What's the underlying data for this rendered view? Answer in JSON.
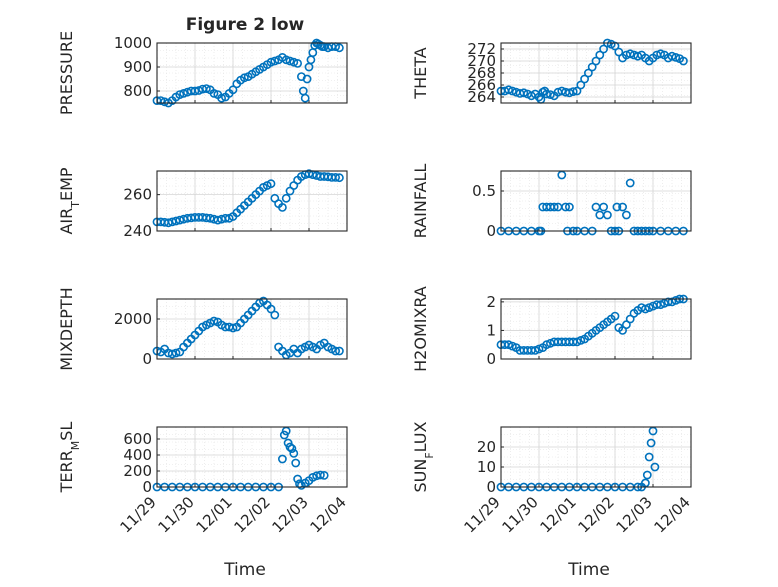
{
  "figure": {
    "title": "Figure 2 low",
    "marker_color": "#0072BD",
    "grid": "on",
    "x_tick_labels": [
      "11/29",
      "11/30",
      "12/01",
      "12/02",
      "12/03",
      "12/04"
    ],
    "x_label": "Time"
  },
  "chart_data": [
    {
      "type": "scatter",
      "ylabel": "PRESSURE",
      "ylim": [
        750,
        1000
      ],
      "yticks": [
        "800",
        "900",
        "1000"
      ],
      "ytick_values": [
        800,
        900,
        1000
      ],
      "xlim": [
        0,
        5
      ],
      "x": [
        0.0,
        0.1,
        0.2,
        0.3,
        0.4,
        0.5,
        0.6,
        0.7,
        0.8,
        0.9,
        1.0,
        1.1,
        1.2,
        1.3,
        1.4,
        1.5,
        1.6,
        1.7,
        1.8,
        1.9,
        2.0,
        2.1,
        2.2,
        2.3,
        2.4,
        2.5,
        2.6,
        2.7,
        2.8,
        2.9,
        3.0,
        3.1,
        3.2,
        3.3,
        3.4,
        3.5,
        3.6,
        3.7,
        3.8,
        3.85,
        3.9,
        3.95,
        4.0,
        4.05,
        4.1,
        4.15,
        4.2,
        4.25,
        4.3,
        4.35,
        4.4,
        4.5,
        4.6,
        4.7,
        4.8
      ],
      "y": [
        760,
        760,
        755,
        750,
        760,
        775,
        785,
        790,
        795,
        800,
        800,
        802,
        808,
        810,
        805,
        790,
        785,
        770,
        775,
        790,
        805,
        830,
        845,
        855,
        860,
        870,
        880,
        890,
        900,
        910,
        920,
        925,
        930,
        940,
        930,
        925,
        920,
        915,
        860,
        800,
        770,
        850,
        900,
        930,
        960,
        990,
        1000,
        995,
        990,
        985,
        985,
        980,
        985,
        985,
        980
      ]
    },
    {
      "type": "scatter",
      "ylabel": "THETA",
      "ylim": [
        263,
        273
      ],
      "yticks": [
        "264",
        "266",
        "268",
        "270",
        "272"
      ],
      "ytick_values": [
        264,
        266,
        268,
        270,
        272
      ],
      "xlim": [
        0,
        5
      ],
      "x": [
        0.0,
        0.1,
        0.2,
        0.3,
        0.4,
        0.5,
        0.6,
        0.7,
        0.8,
        0.9,
        1.0,
        1.05,
        1.1,
        1.15,
        1.2,
        1.3,
        1.4,
        1.5,
        1.6,
        1.7,
        1.8,
        1.9,
        2.0,
        2.1,
        2.2,
        2.3,
        2.4,
        2.5,
        2.6,
        2.7,
        2.8,
        2.9,
        3.0,
        3.1,
        3.2,
        3.3,
        3.4,
        3.5,
        3.6,
        3.7,
        3.8,
        3.9,
        4.0,
        4.1,
        4.2,
        4.3,
        4.4,
        4.5,
        4.6,
        4.7,
        4.8
      ],
      "y": [
        265,
        265,
        265.2,
        265,
        264.8,
        264.6,
        264.7,
        264.5,
        264.2,
        264.5,
        264,
        263.6,
        264.8,
        265,
        264.5,
        264.4,
        264.2,
        264.8,
        265,
        264.8,
        264.7,
        264.9,
        265,
        266,
        267,
        268,
        269,
        270,
        271,
        272,
        273,
        272.8,
        272.5,
        271.5,
        270.5,
        271,
        271.2,
        271,
        270.8,
        271,
        270.5,
        270,
        270.5,
        271,
        271.2,
        271,
        270.5,
        270.8,
        270.6,
        270.4,
        270
      ]
    },
    {
      "type": "scatter",
      "ylabel": "AIR_TEMP",
      "ylim": [
        240,
        273
      ],
      "yticks": [
        "240",
        "260"
      ],
      "ytick_values": [
        240,
        260
      ],
      "xlim": [
        0,
        5
      ],
      "x": [
        0.0,
        0.1,
        0.2,
        0.3,
        0.4,
        0.5,
        0.6,
        0.7,
        0.8,
        0.9,
        1.0,
        1.1,
        1.2,
        1.3,
        1.4,
        1.5,
        1.6,
        1.7,
        1.8,
        1.9,
        2.0,
        2.1,
        2.2,
        2.3,
        2.4,
        2.5,
        2.6,
        2.7,
        2.8,
        2.9,
        3.0,
        3.1,
        3.2,
        3.3,
        3.4,
        3.5,
        3.6,
        3.7,
        3.8,
        3.9,
        4.0,
        4.1,
        4.2,
        4.3,
        4.4,
        4.5,
        4.6,
        4.7,
        4.8
      ],
      "y": [
        245,
        245,
        244.8,
        244.5,
        245,
        245.5,
        246,
        246.5,
        247,
        247.2,
        247.5,
        247.5,
        247.5,
        247.2,
        247,
        246.5,
        246,
        246.5,
        247,
        247,
        248,
        250,
        252,
        254,
        256,
        258,
        260,
        262,
        264,
        265,
        266,
        258,
        255,
        253,
        258,
        262,
        265,
        268,
        270,
        271,
        271.5,
        271,
        270.5,
        270,
        270,
        269.8,
        269.5,
        269.5,
        269.3
      ]
    },
    {
      "type": "scatter",
      "ylabel": "RAINFALL",
      "ylim": [
        0,
        0.75
      ],
      "yticks": [
        "0",
        "0.5"
      ],
      "ytick_values": [
        0,
        0.5
      ],
      "xlim": [
        0,
        5
      ],
      "x": [
        0.0,
        0.2,
        0.4,
        0.6,
        0.8,
        1.0,
        1.05,
        1.1,
        1.2,
        1.3,
        1.4,
        1.5,
        1.6,
        1.7,
        1.75,
        1.8,
        1.9,
        2.0,
        2.2,
        2.4,
        2.5,
        2.6,
        2.7,
        2.8,
        2.9,
        3.0,
        3.05,
        3.1,
        3.2,
        3.3,
        3.4,
        3.5,
        3.6,
        3.7,
        3.8,
        3.9,
        4.0,
        4.2,
        4.4,
        4.6,
        4.8
      ],
      "y": [
        0,
        0,
        0,
        0,
        0,
        0,
        0,
        0.3,
        0.3,
        0.3,
        0.3,
        0.3,
        0.7,
        0.3,
        0,
        0.3,
        0,
        0,
        0,
        0,
        0.3,
        0.2,
        0.3,
        0.2,
        0,
        0,
        0.3,
        0,
        0.3,
        0.2,
        0.6,
        0,
        0,
        0,
        0,
        0,
        0,
        0,
        0,
        0,
        0
      ]
    },
    {
      "type": "scatter",
      "ylabel": "MIXDEPTH",
      "ylim": [
        0,
        3000
      ],
      "yticks": [
        "0",
        "2000"
      ],
      "ytick_values": [
        0,
        2000
      ],
      "xlim": [
        0,
        5
      ],
      "x": [
        0.0,
        0.1,
        0.2,
        0.3,
        0.4,
        0.5,
        0.6,
        0.7,
        0.8,
        0.9,
        1.0,
        1.1,
        1.2,
        1.3,
        1.4,
        1.5,
        1.6,
        1.7,
        1.8,
        1.9,
        2.0,
        2.1,
        2.2,
        2.3,
        2.4,
        2.5,
        2.6,
        2.7,
        2.8,
        2.9,
        3.0,
        3.1,
        3.2,
        3.3,
        3.4,
        3.5,
        3.6,
        3.7,
        3.8,
        3.9,
        4.0,
        4.1,
        4.2,
        4.3,
        4.4,
        4.5,
        4.6,
        4.7,
        4.8
      ],
      "y": [
        400,
        350,
        500,
        300,
        250,
        300,
        350,
        600,
        800,
        1000,
        1200,
        1400,
        1600,
        1700,
        1800,
        1900,
        1850,
        1700,
        1600,
        1600,
        1550,
        1600,
        1800,
        2000,
        2200,
        2400,
        2600,
        2800,
        2900,
        2700,
        2500,
        2200,
        600,
        400,
        200,
        300,
        500,
        300,
        500,
        600,
        700,
        600,
        500,
        700,
        800,
        600,
        500,
        400,
        400
      ]
    },
    {
      "type": "scatter",
      "ylabel": "H2OMIXRA",
      "ylim": [
        0,
        2.1
      ],
      "yticks": [
        "0",
        "1",
        "2"
      ],
      "ytick_values": [
        0,
        1,
        2
      ],
      "xlim": [
        0,
        5
      ],
      "x": [
        0.0,
        0.1,
        0.2,
        0.3,
        0.4,
        0.5,
        0.6,
        0.7,
        0.8,
        0.9,
        1.0,
        1.1,
        1.2,
        1.3,
        1.4,
        1.5,
        1.6,
        1.7,
        1.8,
        1.9,
        2.0,
        2.1,
        2.2,
        2.3,
        2.4,
        2.5,
        2.6,
        2.7,
        2.8,
        2.9,
        3.0,
        3.1,
        3.2,
        3.3,
        3.4,
        3.5,
        3.6,
        3.7,
        3.8,
        3.9,
        4.0,
        4.1,
        4.2,
        4.3,
        4.4,
        4.5,
        4.6,
        4.7,
        4.8
      ],
      "y": [
        0.5,
        0.5,
        0.5,
        0.45,
        0.4,
        0.3,
        0.3,
        0.3,
        0.3,
        0.3,
        0.35,
        0.4,
        0.5,
        0.55,
        0.6,
        0.6,
        0.6,
        0.6,
        0.6,
        0.6,
        0.6,
        0.65,
        0.7,
        0.8,
        0.9,
        1.0,
        1.1,
        1.2,
        1.3,
        1.4,
        1.5,
        1.1,
        1.0,
        1.2,
        1.4,
        1.6,
        1.7,
        1.8,
        1.75,
        1.8,
        1.85,
        1.9,
        1.9,
        1.95,
        2.0,
        2.0,
        2.05,
        2.1,
        2.1
      ]
    },
    {
      "type": "scatter",
      "ylabel": "TERR_MSL",
      "ylim": [
        0,
        750
      ],
      "yticks": [
        "0",
        "200",
        "400",
        "600"
      ],
      "ytick_values": [
        0,
        200,
        400,
        600
      ],
      "xlim": [
        0,
        5
      ],
      "x": [
        0.0,
        0.2,
        0.4,
        0.6,
        0.8,
        1.0,
        1.2,
        1.4,
        1.6,
        1.8,
        2.0,
        2.2,
        2.4,
        2.6,
        2.8,
        3.0,
        3.2,
        3.3,
        3.35,
        3.4,
        3.45,
        3.5,
        3.55,
        3.6,
        3.65,
        3.7,
        3.75,
        3.8,
        3.9,
        4.0,
        4.1,
        4.2,
        4.3,
        4.4
      ],
      "y": [
        0,
        0,
        0,
        0,
        0,
        0,
        0,
        0,
        0,
        0,
        0,
        0,
        0,
        0,
        0,
        0,
        0,
        350,
        650,
        700,
        550,
        500,
        480,
        420,
        300,
        100,
        40,
        20,
        50,
        80,
        120,
        140,
        150,
        145
      ]
    },
    {
      "type": "scatter",
      "ylabel": "SUN_FLUX",
      "ylim": [
        0,
        30
      ],
      "yticks": [
        "0",
        "10",
        "20"
      ],
      "ytick_values": [
        0,
        10,
        20
      ],
      "xlim": [
        0,
        5
      ],
      "x": [
        0.0,
        0.2,
        0.4,
        0.6,
        0.8,
        1.0,
        1.2,
        1.4,
        1.6,
        1.8,
        2.0,
        2.2,
        2.4,
        2.6,
        2.8,
        3.0,
        3.2,
        3.4,
        3.6,
        3.7,
        3.8,
        3.85,
        3.9,
        3.95,
        4.0,
        4.05
      ],
      "y": [
        0,
        0,
        0,
        0,
        0,
        0,
        0,
        0,
        0,
        0,
        0,
        0,
        0,
        0,
        0,
        0,
        0,
        0,
        0,
        0,
        2,
        6,
        15,
        22,
        28,
        10
      ]
    }
  ]
}
